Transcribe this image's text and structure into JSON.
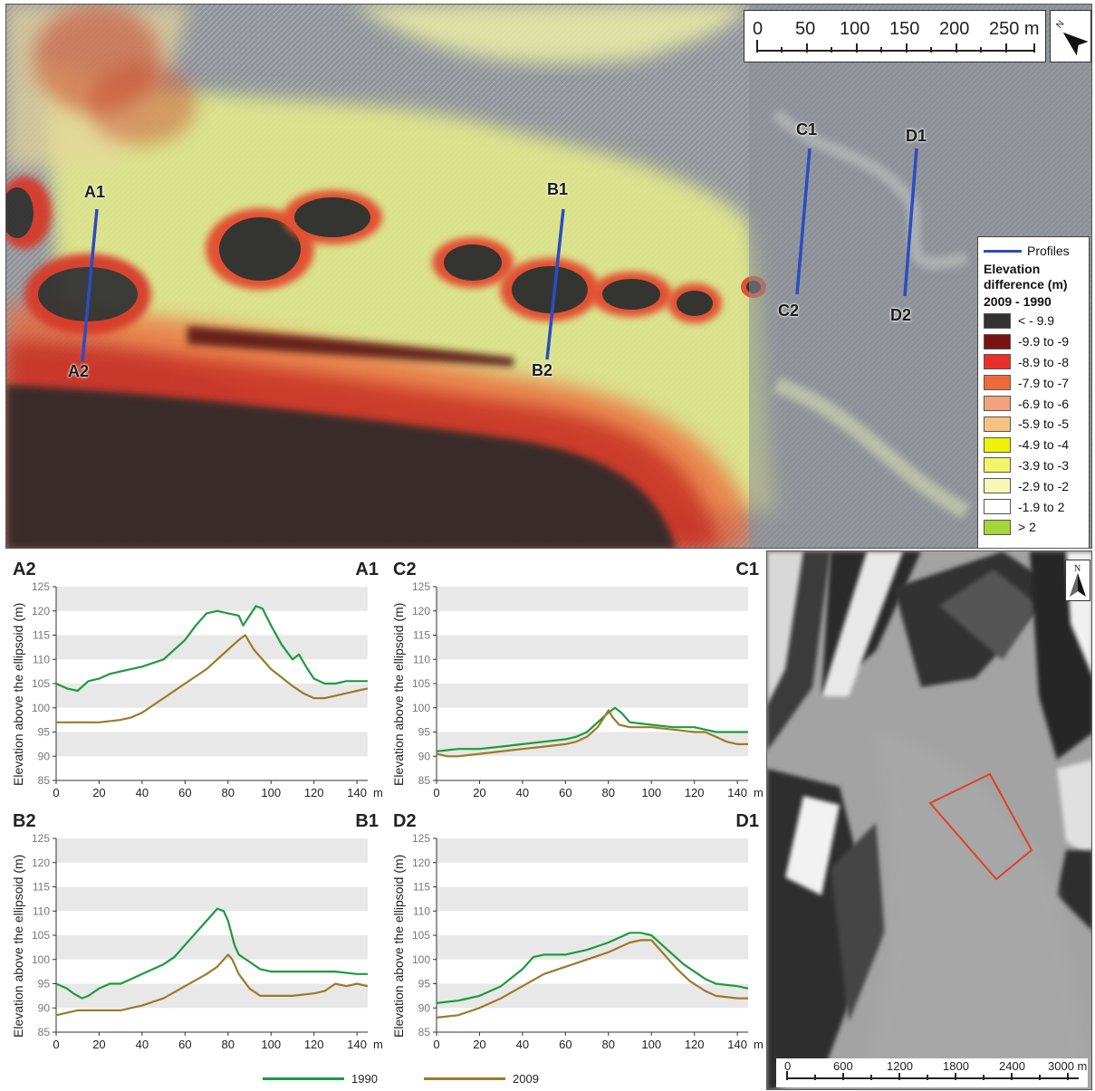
{
  "colors": {
    "profile_line": "#2c4cc4",
    "series_1990": "#1e9a3c",
    "series_2009": "#9c7a28",
    "grid_band": "#e8e8e8",
    "study_area_box": "#e04028"
  },
  "map": {
    "profile_labels": [
      "A1",
      "A2",
      "B1",
      "B2",
      "C1",
      "C2",
      "D1",
      "D2"
    ],
    "scalebar": {
      "ticks": [
        "0",
        "50",
        "100",
        "150",
        "200",
        "250 m"
      ]
    },
    "north_arrow_label": "N",
    "legend": {
      "profiles_label": "Profiles",
      "title": "Elevation difference (m)",
      "subtitle": "2009 - 1990",
      "classes": [
        {
          "label": "< - 9.9",
          "color": "#333333"
        },
        {
          "label": "-9.9 to -9",
          "color": "#7a1414"
        },
        {
          "label": "-8.9 to -8",
          "color": "#e8302a"
        },
        {
          "label": "-7.9 to -7",
          "color": "#ef6a3a"
        },
        {
          "label": "-6.9 to -6",
          "color": "#f4a27c"
        },
        {
          "label": "-5.9 to -5",
          "color": "#f6c27e"
        },
        {
          "label": "-4.9 to -4",
          "color": "#eef20a"
        },
        {
          "label": "-3.9 to -3",
          "color": "#f2f46a"
        },
        {
          "label": "-2.9 to -2",
          "color": "#f7f7b8"
        },
        {
          "label": "-1.9 to 2",
          "color": "#ffffff"
        },
        {
          "label": "> 2",
          "color": "#a6d639"
        }
      ]
    }
  },
  "profiles": {
    "ylabel": "Elevation above the ellipsoid (m)",
    "x_ticks": [
      "0",
      "20",
      "40",
      "60",
      "80",
      "100",
      "120",
      "140"
    ],
    "x_unit": "m",
    "y_ticks": [
      "85",
      "90",
      "95",
      "100",
      "105",
      "110",
      "115",
      "120",
      "125"
    ],
    "charts": [
      {
        "left_label": "A2",
        "right_label": "A1",
        "series_1990": [
          [
            0,
            105
          ],
          [
            5,
            104
          ],
          [
            10,
            103.5
          ],
          [
            15,
            105.5
          ],
          [
            20,
            106
          ],
          [
            25,
            107
          ],
          [
            30,
            107.5
          ],
          [
            40,
            108.5
          ],
          [
            50,
            110
          ],
          [
            55,
            112
          ],
          [
            60,
            114
          ],
          [
            65,
            117
          ],
          [
            70,
            119.5
          ],
          [
            75,
            120
          ],
          [
            80,
            119.5
          ],
          [
            85,
            119
          ],
          [
            87,
            117
          ],
          [
            90,
            119
          ],
          [
            93,
            121
          ],
          [
            96,
            120.5
          ],
          [
            100,
            117
          ],
          [
            105,
            113
          ],
          [
            110,
            110
          ],
          [
            113,
            111
          ],
          [
            117,
            108
          ],
          [
            120,
            106
          ],
          [
            125,
            105
          ],
          [
            130,
            105
          ],
          [
            135,
            105.5
          ],
          [
            140,
            105.5
          ],
          [
            145,
            105.5
          ]
        ],
        "series_2009": [
          [
            0,
            97
          ],
          [
            10,
            97
          ],
          [
            20,
            97
          ],
          [
            30,
            97.5
          ],
          [
            35,
            98
          ],
          [
            40,
            99
          ],
          [
            50,
            102
          ],
          [
            60,
            105
          ],
          [
            70,
            108
          ],
          [
            75,
            110
          ],
          [
            80,
            112
          ],
          [
            85,
            114
          ],
          [
            88,
            115
          ],
          [
            92,
            112
          ],
          [
            95,
            110.5
          ],
          [
            100,
            108
          ],
          [
            110,
            104.5
          ],
          [
            115,
            103
          ],
          [
            120,
            102
          ],
          [
            125,
            102
          ],
          [
            130,
            102.5
          ],
          [
            140,
            103.5
          ],
          [
            145,
            104
          ]
        ]
      },
      {
        "left_label": "C2",
        "right_label": "C1",
        "series_1990": [
          [
            0,
            91
          ],
          [
            10,
            91.5
          ],
          [
            20,
            91.5
          ],
          [
            30,
            92
          ],
          [
            40,
            92.5
          ],
          [
            50,
            93
          ],
          [
            60,
            93.5
          ],
          [
            65,
            94
          ],
          [
            70,
            95
          ],
          [
            75,
            97
          ],
          [
            80,
            99
          ],
          [
            83,
            100
          ],
          [
            86,
            99
          ],
          [
            90,
            97
          ],
          [
            100,
            96.5
          ],
          [
            110,
            96
          ],
          [
            120,
            96
          ],
          [
            125,
            95.5
          ],
          [
            130,
            95
          ],
          [
            140,
            95
          ],
          [
            145,
            95
          ]
        ],
        "series_2009": [
          [
            0,
            90.5
          ],
          [
            5,
            90
          ],
          [
            10,
            90
          ],
          [
            20,
            90.5
          ],
          [
            30,
            91
          ],
          [
            40,
            91.5
          ],
          [
            50,
            92
          ],
          [
            60,
            92.5
          ],
          [
            65,
            93
          ],
          [
            70,
            94
          ],
          [
            75,
            96
          ],
          [
            78,
            98
          ],
          [
            80,
            99.5
          ],
          [
            82,
            98
          ],
          [
            85,
            96.5
          ],
          [
            90,
            96
          ],
          [
            100,
            96
          ],
          [
            110,
            95.5
          ],
          [
            120,
            95
          ],
          [
            125,
            95
          ],
          [
            130,
            94
          ],
          [
            135,
            93
          ],
          [
            140,
            92.5
          ],
          [
            145,
            92.5
          ]
        ]
      },
      {
        "left_label": "B2",
        "right_label": "B1",
        "series_1990": [
          [
            0,
            95
          ],
          [
            5,
            94
          ],
          [
            8,
            93
          ],
          [
            12,
            92
          ],
          [
            15,
            92.5
          ],
          [
            20,
            94
          ],
          [
            25,
            95
          ],
          [
            30,
            95
          ],
          [
            35,
            96
          ],
          [
            40,
            97
          ],
          [
            50,
            99
          ],
          [
            55,
            100.5
          ],
          [
            60,
            103
          ],
          [
            65,
            105.5
          ],
          [
            70,
            108
          ],
          [
            75,
            110.5
          ],
          [
            78,
            110
          ],
          [
            80,
            108
          ],
          [
            83,
            103
          ],
          [
            85,
            101
          ],
          [
            90,
            99.5
          ],
          [
            95,
            98
          ],
          [
            100,
            97.5
          ],
          [
            110,
            97.5
          ],
          [
            120,
            97.5
          ],
          [
            130,
            97.5
          ],
          [
            140,
            97
          ],
          [
            145,
            97
          ]
        ],
        "series_2009": [
          [
            0,
            88.5
          ],
          [
            5,
            89
          ],
          [
            10,
            89.5
          ],
          [
            20,
            89.5
          ],
          [
            30,
            89.5
          ],
          [
            40,
            90.5
          ],
          [
            50,
            92
          ],
          [
            60,
            94.5
          ],
          [
            70,
            97
          ],
          [
            75,
            98.5
          ],
          [
            80,
            101
          ],
          [
            82,
            100
          ],
          [
            85,
            97
          ],
          [
            90,
            94
          ],
          [
            95,
            92.5
          ],
          [
            100,
            92.5
          ],
          [
            110,
            92.5
          ],
          [
            120,
            93
          ],
          [
            125,
            93.5
          ],
          [
            130,
            95
          ],
          [
            135,
            94.5
          ],
          [
            140,
            95
          ],
          [
            145,
            94.5
          ]
        ]
      },
      {
        "left_label": "D2",
        "right_label": "D1",
        "series_1990": [
          [
            0,
            91
          ],
          [
            10,
            91.5
          ],
          [
            20,
            92.5
          ],
          [
            30,
            94.5
          ],
          [
            40,
            98
          ],
          [
            45,
            100.5
          ],
          [
            50,
            101
          ],
          [
            60,
            101
          ],
          [
            70,
            102
          ],
          [
            80,
            103.5
          ],
          [
            90,
            105.5
          ],
          [
            95,
            105.5
          ],
          [
            100,
            105
          ],
          [
            105,
            103
          ],
          [
            110,
            101
          ],
          [
            115,
            99
          ],
          [
            120,
            97.5
          ],
          [
            125,
            96
          ],
          [
            130,
            95
          ],
          [
            140,
            94.5
          ],
          [
            145,
            94
          ]
        ],
        "series_2009": [
          [
            0,
            88
          ],
          [
            10,
            88.5
          ],
          [
            20,
            90
          ],
          [
            30,
            92
          ],
          [
            40,
            94.5
          ],
          [
            50,
            97
          ],
          [
            60,
            98.5
          ],
          [
            70,
            100
          ],
          [
            80,
            101.5
          ],
          [
            90,
            103.5
          ],
          [
            95,
            104
          ],
          [
            100,
            104
          ],
          [
            103,
            102.5
          ],
          [
            108,
            100
          ],
          [
            112,
            98
          ],
          [
            118,
            95.5
          ],
          [
            125,
            93.5
          ],
          [
            130,
            92.5
          ],
          [
            140,
            92
          ],
          [
            145,
            92
          ]
        ]
      }
    ],
    "legend": {
      "label_1990": "1990",
      "label_2009": "2009"
    }
  },
  "overview": {
    "north_arrow_label": "N",
    "scalebar": {
      "ticks": [
        "0",
        "600",
        "1200",
        "1800",
        "2400",
        "3000 m"
      ]
    }
  }
}
